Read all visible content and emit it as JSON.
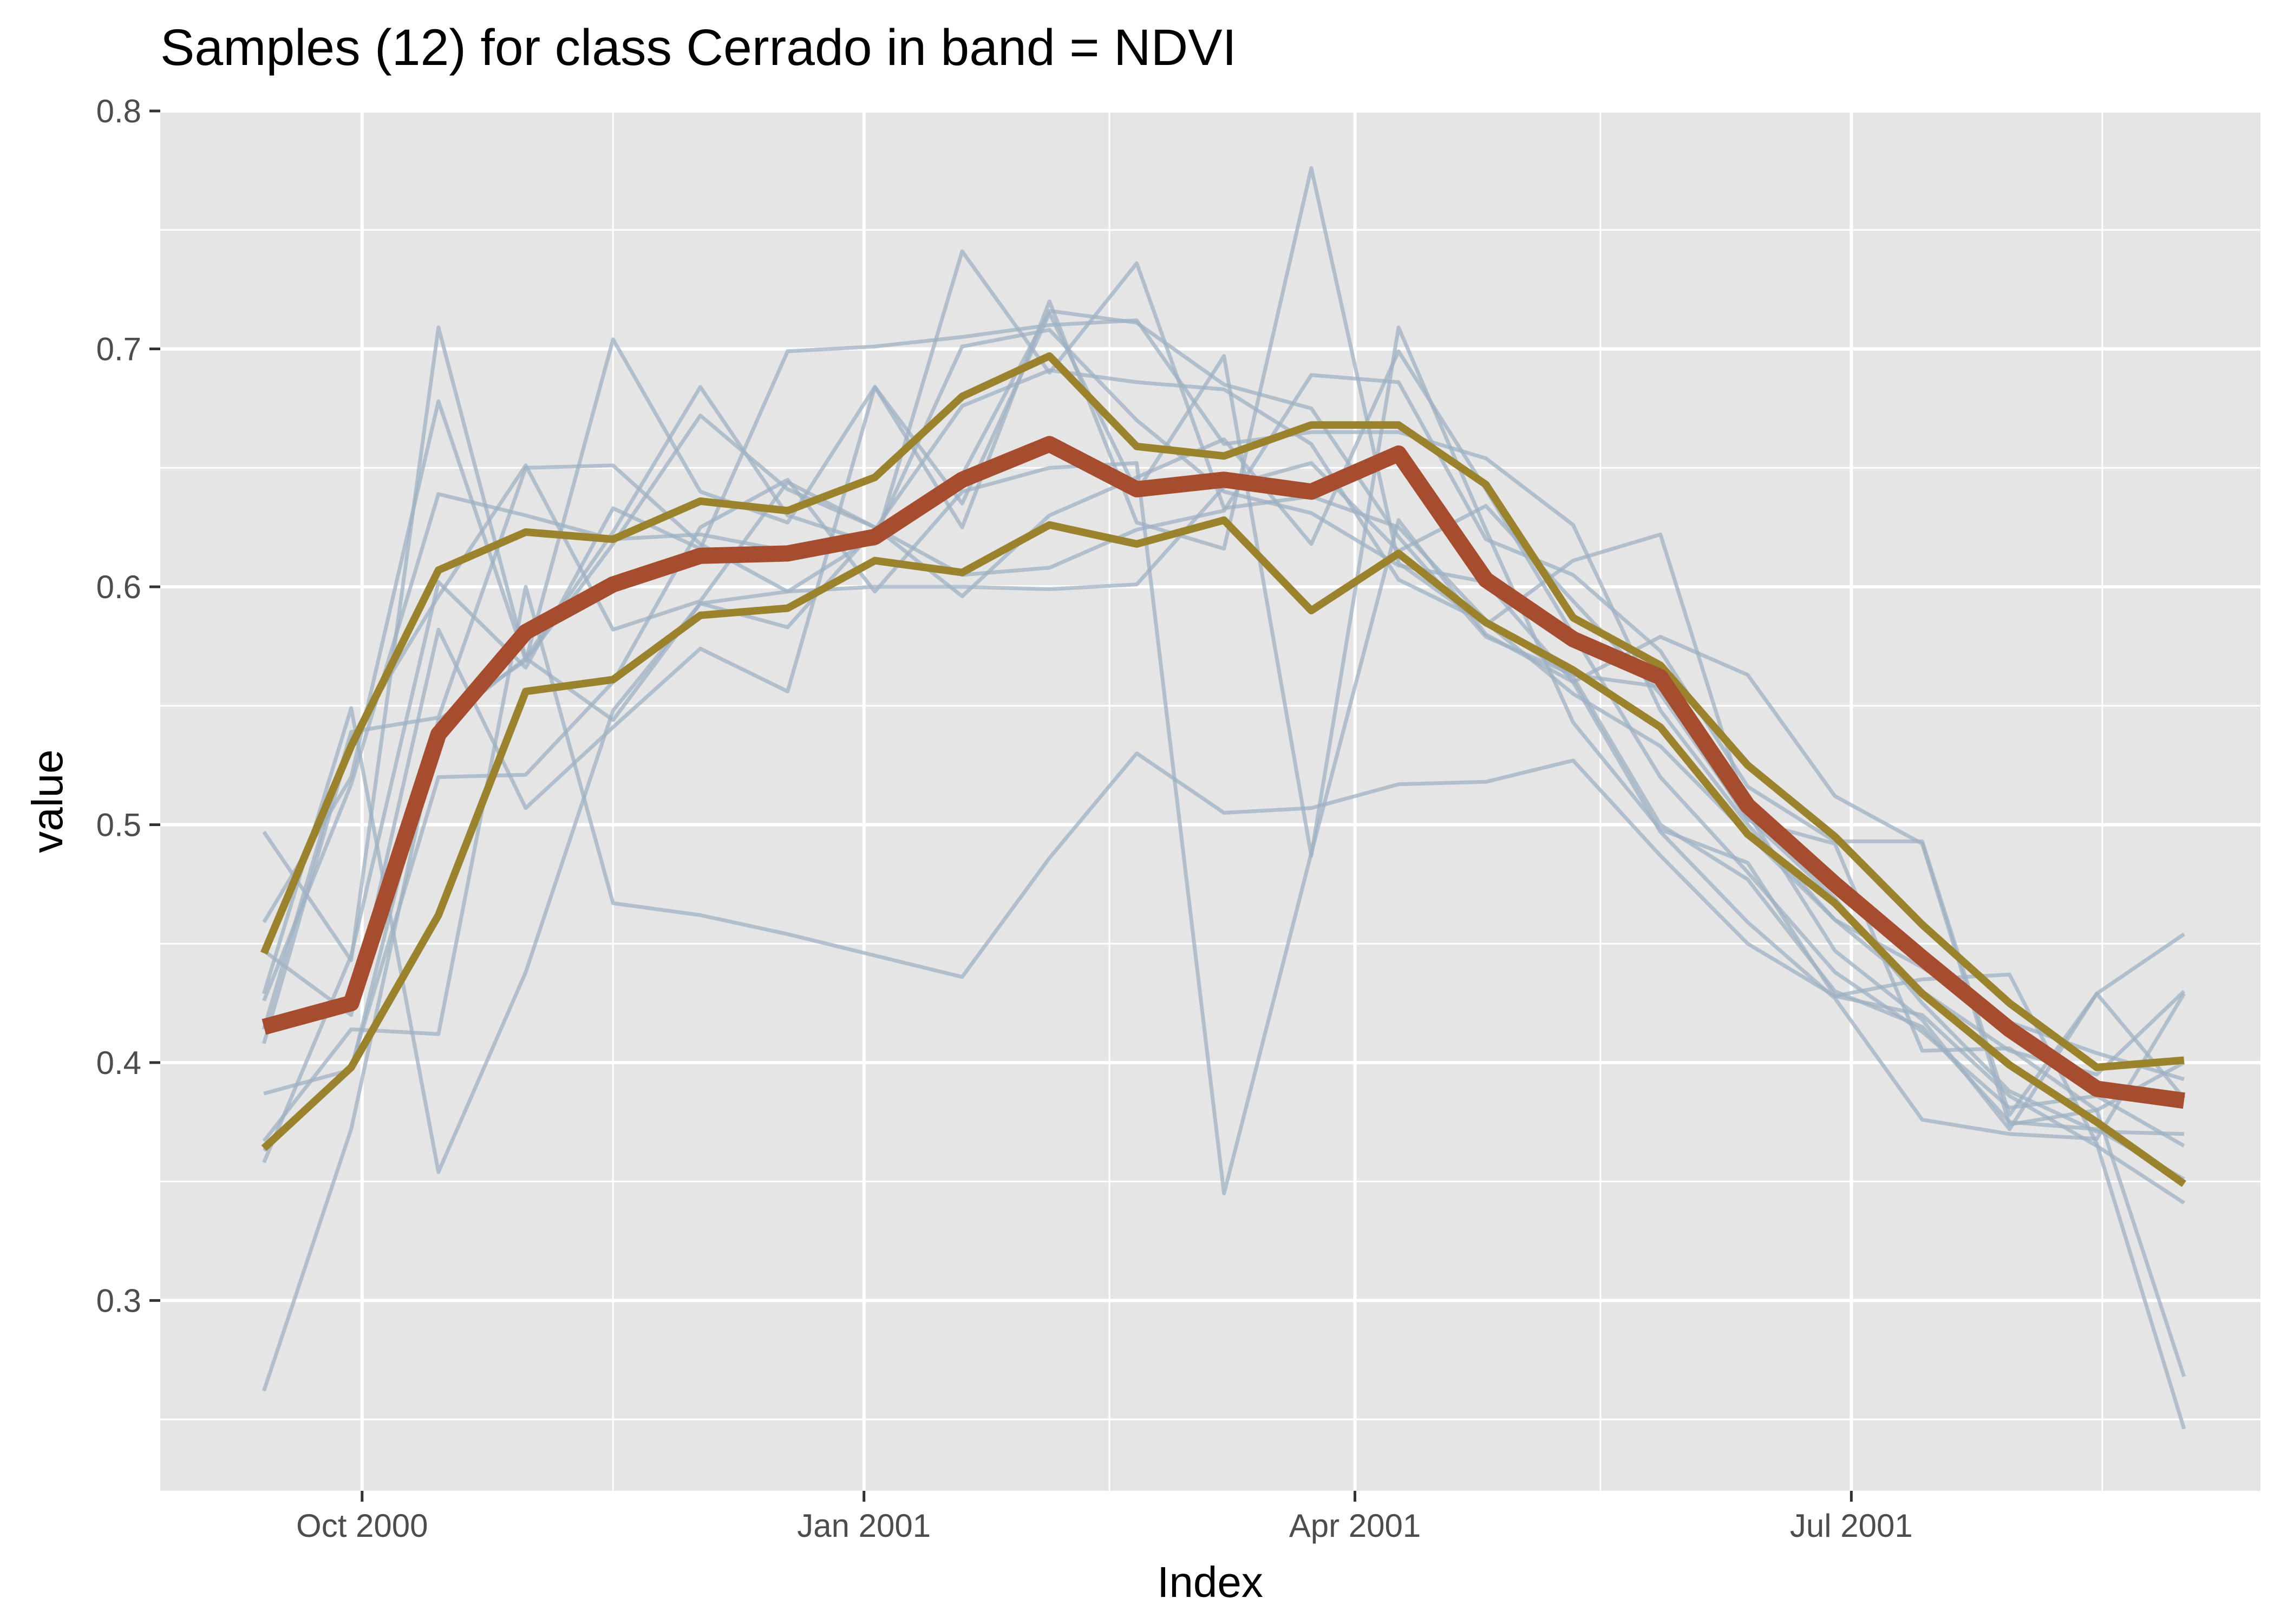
{
  "chart_data": {
    "type": "line",
    "title": "Samples (12) for class Cerrado in band = NDVI",
    "xlabel": "Index",
    "ylabel": "value",
    "x_range": [
      "2000-08-25",
      "2001-09-14"
    ],
    "ylim": [
      0.22,
      0.8
    ],
    "x_ticks": [
      {
        "date": "2000-10-01",
        "label": "Oct 2000"
      },
      {
        "date": "2001-01-01",
        "label": "Jan 2001"
      },
      {
        "date": "2001-04-01",
        "label": "Apr 2001"
      },
      {
        "date": "2001-07-01",
        "label": "Jul 2001"
      }
    ],
    "x_minor_ticks": [
      "2000-11-16",
      "2001-02-15",
      "2001-05-16",
      "2001-08-16"
    ],
    "y_ticks": [
      {
        "value": 0.3,
        "label": "0.3"
      },
      {
        "value": 0.4,
        "label": "0.4"
      },
      {
        "value": 0.5,
        "label": "0.5"
      },
      {
        "value": 0.6,
        "label": "0.6"
      },
      {
        "value": 0.7,
        "label": "0.7"
      },
      {
        "value": 0.8,
        "label": "0.8"
      }
    ],
    "y_minor_ticks": [
      0.25,
      0.35,
      0.45,
      0.55,
      0.65,
      0.75
    ],
    "grid": true,
    "colors": {
      "panel": "#e5e5e5",
      "grid": "#ffffff",
      "samples": "#9fb1c3",
      "median": "#a54d2e",
      "quartiles": "#9b832e"
    },
    "x": [
      "2000-09-13",
      "2000-09-29",
      "2000-10-15",
      "2000-10-31",
      "2000-11-16",
      "2000-12-02",
      "2000-12-18",
      "2001-01-03",
      "2001-01-19",
      "2001-02-04",
      "2001-02-20",
      "2001-03-08",
      "2001-03-24",
      "2001-04-09",
      "2001-04-25",
      "2001-05-11",
      "2001-05-27",
      "2001-06-12",
      "2001-06-28",
      "2001-07-14",
      "2001-07-30",
      "2001-08-15",
      "2001-08-31"
    ],
    "samples": [
      {
        "values": [
          0.497,
          0.443,
          0.709,
          0.57,
          0.623,
          0.684,
          0.63,
          0.618,
          0.741,
          0.69,
          0.736,
          0.633,
          0.638,
          0.625,
          0.586,
          0.562,
          0.5,
          0.477,
          0.43,
          0.415,
          0.375,
          0.372,
          0.351
        ]
      },
      {
        "values": [
          0.459,
          0.52,
          0.678,
          0.569,
          0.704,
          0.64,
          0.627,
          0.684,
          0.635,
          0.715,
          0.64,
          0.697,
          0.487,
          0.709,
          0.624,
          0.543,
          0.498,
          0.484,
          0.428,
          0.42,
          0.386,
          0.365,
          0.341
        ]
      },
      {
        "values": [
          0.447,
          0.42,
          0.582,
          0.507,
          0.541,
          0.574,
          0.556,
          0.684,
          0.625,
          0.72,
          0.627,
          0.616,
          0.776,
          0.61,
          0.584,
          0.611,
          0.622,
          0.505,
          0.447,
          0.418,
          0.372,
          0.429,
          0.385
        ]
      },
      {
        "values": [
          0.426,
          0.517,
          0.639,
          0.63,
          0.62,
          0.622,
          0.615,
          0.618,
          0.647,
          0.716,
          0.711,
          0.685,
          0.675,
          0.621,
          0.579,
          0.563,
          0.558,
          0.502,
          0.492,
          0.405,
          0.406,
          0.38,
          0.268
        ]
      },
      {
        "values": [
          0.429,
          0.549,
          0.354,
          0.438,
          0.548,
          0.593,
          0.598,
          0.621,
          0.701,
          0.708,
          0.67,
          0.64,
          0.631,
          0.609,
          0.602,
          0.56,
          0.497,
          0.459,
          0.427,
          0.376,
          0.37,
          0.368,
          0.429
        ]
      },
      {
        "values": [
          0.408,
          0.536,
          0.596,
          0.651,
          0.582,
          0.594,
          0.644,
          0.625,
          0.605,
          0.608,
          0.624,
          0.632,
          0.689,
          0.686,
          0.62,
          0.605,
          0.573,
          0.516,
          0.493,
          0.493,
          0.378,
          0.429,
          0.454
        ]
      },
      {
        "values": [
          0.367,
          0.414,
          0.412,
          0.6,
          0.467,
          0.462,
          0.454,
          0.445,
          0.436,
          0.486,
          0.53,
          0.505,
          0.507,
          0.517,
          0.518,
          0.527,
          0.487,
          0.45,
          0.428,
          0.435,
          0.437,
          0.366,
          0.246
        ]
      },
      {
        "values": [
          0.363,
          0.398,
          0.52,
          0.521,
          0.56,
          0.625,
          0.645,
          0.598,
          0.64,
          0.65,
          0.652,
          0.345,
          0.488,
          0.628,
          0.58,
          0.56,
          0.579,
          0.563,
          0.512,
          0.492,
          0.374,
          0.38,
          0.4
        ]
      },
      {
        "values": [
          0.358,
          0.445,
          0.602,
          0.566,
          0.633,
          0.616,
          0.699,
          0.701,
          0.705,
          0.71,
          0.712,
          0.66,
          0.665,
          0.665,
          0.654,
          0.626,
          0.548,
          0.5,
          0.46,
          0.44,
          0.417,
          0.404,
          0.393
        ]
      },
      {
        "values": [
          0.262,
          0.372,
          0.541,
          0.57,
          0.544,
          0.593,
          0.583,
          0.624,
          0.676,
          0.691,
          0.686,
          0.683,
          0.66,
          0.603,
          0.585,
          0.555,
          0.533,
          0.496,
          0.46,
          0.43,
          0.405,
          0.395,
          0.43
        ]
      },
      {
        "values": [
          0.387,
          0.397,
          0.544,
          0.569,
          0.618,
          0.672,
          0.641,
          0.625,
          0.596,
          0.63,
          0.646,
          0.662,
          0.618,
          0.699,
          0.641,
          0.58,
          0.52,
          0.48,
          0.438,
          0.413,
          0.381,
          0.386,
          0.365
        ]
      },
      {
        "values": [
          0.414,
          0.539,
          0.545,
          0.65,
          0.651,
          0.618,
          0.598,
          0.6,
          0.6,
          0.599,
          0.601,
          0.642,
          0.652,
          0.615,
          0.634,
          0.594,
          0.555,
          0.503,
          0.469,
          0.425,
          0.388,
          0.371,
          0.37
        ]
      }
    ],
    "quartile_upper": [
      0.446,
      0.533,
      0.607,
      0.623,
      0.62,
      0.636,
      0.632,
      0.646,
      0.68,
      0.697,
      0.659,
      0.655,
      0.668,
      0.668,
      0.643,
      0.587,
      0.567,
      0.525,
      0.495,
      0.458,
      0.425,
      0.398,
      0.401
    ],
    "median": [
      0.415,
      0.425,
      0.538,
      0.581,
      0.601,
      0.613,
      0.614,
      0.621,
      0.645,
      0.66,
      0.641,
      0.645,
      0.64,
      0.656,
      0.603,
      0.578,
      0.562,
      0.508,
      0.475,
      0.444,
      0.414,
      0.389,
      0.384
    ],
    "quartile_lower": [
      0.364,
      0.398,
      0.462,
      0.556,
      0.561,
      0.588,
      0.591,
      0.611,
      0.606,
      0.626,
      0.618,
      0.628,
      0.59,
      0.614,
      0.585,
      0.565,
      0.541,
      0.496,
      0.467,
      0.429,
      0.399,
      0.375,
      0.349
    ]
  }
}
